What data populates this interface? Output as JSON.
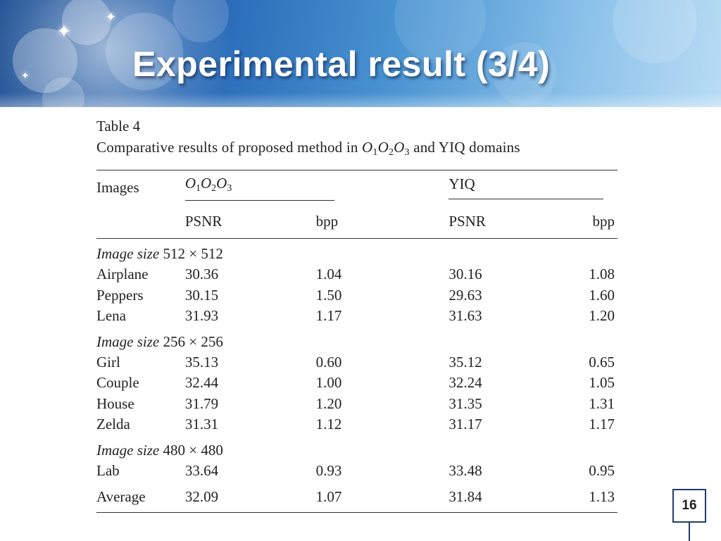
{
  "slide": {
    "title": "Experimental result (3/4)",
    "page_number": "16"
  },
  "table": {
    "label": "Table 4",
    "caption_prefix": "Comparative results of proposed method in",
    "caption_suffix": "and YIQ domains",
    "header": {
      "images": "Images",
      "group1": "O1O2O3",
      "group2": "YIQ",
      "psnr": "PSNR",
      "bpp": "bpp"
    },
    "sections": [
      {
        "label_italic": "Image size",
        "label_rest": "512 × 512",
        "rows": [
          {
            "name": "Airplane",
            "o_psnr": "30.36",
            "o_bpp": "1.04",
            "y_psnr": "30.16",
            "y_bpp": "1.08"
          },
          {
            "name": "Peppers",
            "o_psnr": "30.15",
            "o_bpp": "1.50",
            "y_psnr": "29.63",
            "y_bpp": "1.60"
          },
          {
            "name": "Lena",
            "o_psnr": "31.93",
            "o_bpp": "1.17",
            "y_psnr": "31.63",
            "y_bpp": "1.20"
          }
        ]
      },
      {
        "label_italic": "Image size",
        "label_rest": "256 × 256",
        "rows": [
          {
            "name": "Girl",
            "o_psnr": "35.13",
            "o_bpp": "0.60",
            "y_psnr": "35.12",
            "y_bpp": "0.65"
          },
          {
            "name": "Couple",
            "o_psnr": "32.44",
            "o_bpp": "1.00",
            "y_psnr": "32.24",
            "y_bpp": "1.05"
          },
          {
            "name": "House",
            "o_psnr": "31.79",
            "o_bpp": "1.20",
            "y_psnr": "31.35",
            "y_bpp": "1.31"
          },
          {
            "name": "Zelda",
            "o_psnr": "31.31",
            "o_bpp": "1.12",
            "y_psnr": "31.17",
            "y_bpp": "1.17"
          }
        ]
      },
      {
        "label_italic": "Image size",
        "label_rest": "480 × 480",
        "rows": [
          {
            "name": "Lab",
            "o_psnr": "33.64",
            "o_bpp": "0.93",
            "y_psnr": "33.48",
            "y_bpp": "0.95"
          }
        ]
      }
    ],
    "average": {
      "name": "Average",
      "o_psnr": "32.09",
      "o_bpp": "1.07",
      "y_psnr": "31.84",
      "y_bpp": "1.13"
    }
  }
}
